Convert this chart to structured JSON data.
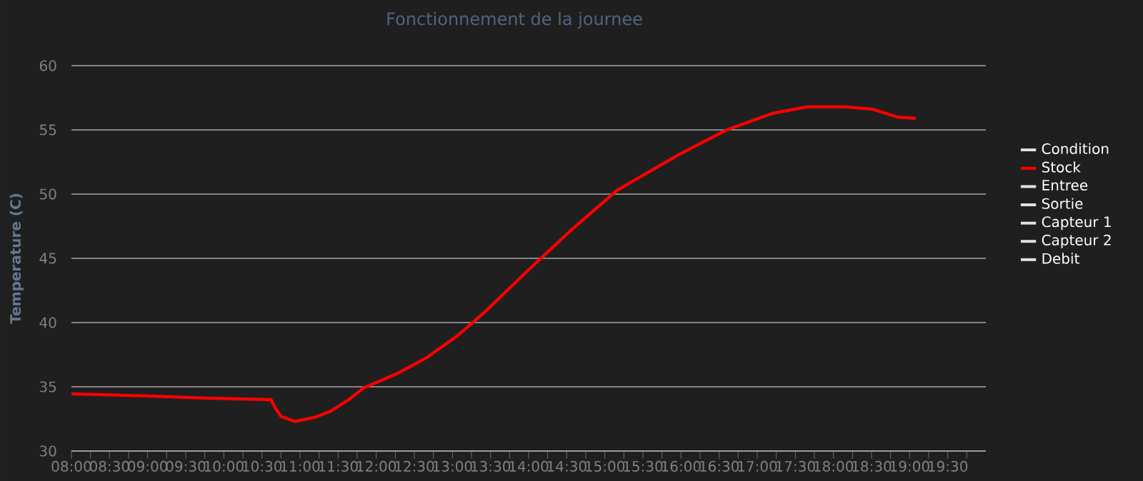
{
  "chart_data": {
    "type": "line",
    "title": "Fonctionnement de la journee",
    "ylabel": "Temperature (C)",
    "x": [
      8.0,
      8.93,
      9.87,
      10.62,
      10.67,
      10.75,
      10.93,
      11.18,
      11.4,
      11.64,
      11.83,
      12.3,
      12.67,
      13.05,
      13.42,
      13.98,
      14.54,
      15.16,
      15.98,
      16.6,
      17.21,
      17.66,
      18.15,
      18.52,
      18.84,
      19.08
    ],
    "series": [
      {
        "name": "Condition",
        "color": "#e0e0e0",
        "values": [
          null,
          null,
          null,
          null,
          null,
          null,
          null,
          null,
          null,
          null,
          null,
          null,
          null,
          null,
          null,
          null,
          null,
          null,
          null,
          null,
          null,
          null,
          null,
          null,
          null,
          null
        ]
      },
      {
        "name": "Stock",
        "color": "#ff0000",
        "values": [
          34.45,
          34.3,
          34.1,
          34.0,
          33.4,
          32.7,
          32.3,
          32.6,
          33.1,
          34.0,
          34.9,
          36.1,
          37.3,
          38.9,
          40.8,
          44.0,
          47.1,
          50.3,
          53.1,
          55.0,
          56.3,
          56.8,
          56.8,
          56.6,
          56.0,
          55.9
        ]
      },
      {
        "name": "Entree",
        "color": "#e0e0e0",
        "values": [
          null,
          null,
          null,
          null,
          null,
          null,
          null,
          null,
          null,
          null,
          null,
          null,
          null,
          null,
          null,
          null,
          null,
          null,
          null,
          null,
          null,
          null,
          null,
          null,
          null,
          null
        ]
      },
      {
        "name": "Sortie",
        "color": "#e0e0e0",
        "values": [
          null,
          null,
          null,
          null,
          null,
          null,
          null,
          null,
          null,
          null,
          null,
          null,
          null,
          null,
          null,
          null,
          null,
          null,
          null,
          null,
          null,
          null,
          null,
          null,
          null,
          null
        ]
      },
      {
        "name": "Capteur 1",
        "color": "#e0e0e0",
        "values": [
          null,
          null,
          null,
          null,
          null,
          null,
          null,
          null,
          null,
          null,
          null,
          null,
          null,
          null,
          null,
          null,
          null,
          null,
          null,
          null,
          null,
          null,
          null,
          null,
          null,
          null
        ]
      },
      {
        "name": "Capteur 2",
        "color": "#e0e0e0",
        "values": [
          null,
          null,
          null,
          null,
          null,
          null,
          null,
          null,
          null,
          null,
          null,
          null,
          null,
          null,
          null,
          null,
          null,
          null,
          null,
          null,
          null,
          null,
          null,
          null,
          null,
          null
        ]
      },
      {
        "name": "Debit",
        "color": "#e0e0e0",
        "values": [
          null,
          null,
          null,
          null,
          null,
          null,
          null,
          null,
          null,
          null,
          null,
          null,
          null,
          null,
          null,
          null,
          null,
          null,
          null,
          null,
          null,
          null,
          null,
          null,
          null,
          null
        ]
      }
    ],
    "xlim": [
      8,
      20
    ],
    "ylim": [
      30,
      60
    ],
    "yticks": [
      30,
      35,
      40,
      45,
      50,
      55,
      60
    ],
    "xticks": [
      {
        "value": 8,
        "label": "08:00"
      },
      {
        "value": 8.25,
        "label": null
      },
      {
        "value": 8.5,
        "label": "08:30"
      },
      {
        "value": 8.75,
        "label": null
      },
      {
        "value": 9,
        "label": "09:00"
      },
      {
        "value": 9.25,
        "label": null
      },
      {
        "value": 9.5,
        "label": "09:30"
      },
      {
        "value": 9.75,
        "label": null
      },
      {
        "value": 10,
        "label": "10:00"
      },
      {
        "value": 10.25,
        "label": null
      },
      {
        "value": 10.5,
        "label": "10:30"
      },
      {
        "value": 10.75,
        "label": null
      },
      {
        "value": 11,
        "label": "11:00"
      },
      {
        "value": 11.25,
        "label": null
      },
      {
        "value": 11.5,
        "label": "11:30"
      },
      {
        "value": 11.75,
        "label": null
      },
      {
        "value": 12,
        "label": "12:00"
      },
      {
        "value": 12.25,
        "label": null
      },
      {
        "value": 12.5,
        "label": "12:30"
      },
      {
        "value": 12.75,
        "label": null
      },
      {
        "value": 13,
        "label": "13:00"
      },
      {
        "value": 13.25,
        "label": null
      },
      {
        "value": 13.5,
        "label": "13:30"
      },
      {
        "value": 13.75,
        "label": null
      },
      {
        "value": 14,
        "label": "14:00"
      },
      {
        "value": 14.25,
        "label": null
      },
      {
        "value": 14.5,
        "label": "14:30"
      },
      {
        "value": 14.75,
        "label": null
      },
      {
        "value": 15,
        "label": "15:00"
      },
      {
        "value": 15.25,
        "label": null
      },
      {
        "value": 15.5,
        "label": "15:30"
      },
      {
        "value": 15.75,
        "label": null
      },
      {
        "value": 16,
        "label": "16:00"
      },
      {
        "value": 16.25,
        "label": null
      },
      {
        "value": 16.5,
        "label": "16:30"
      },
      {
        "value": 16.75,
        "label": null
      },
      {
        "value": 17,
        "label": "17:00"
      },
      {
        "value": 17.25,
        "label": null
      },
      {
        "value": 17.5,
        "label": "17:30"
      },
      {
        "value": 17.75,
        "label": null
      },
      {
        "value": 18,
        "label": "18:00"
      },
      {
        "value": 18.25,
        "label": null
      },
      {
        "value": 18.5,
        "label": "18:30"
      },
      {
        "value": 18.75,
        "label": null
      },
      {
        "value": 19,
        "label": "19:00"
      },
      {
        "value": 19.25,
        "label": null
      },
      {
        "value": 19.5,
        "label": "19:30"
      },
      {
        "value": 19.75,
        "label": null
      }
    ],
    "grid": "y",
    "legend": "right",
    "marker": "none",
    "line_style": "solid"
  }
}
